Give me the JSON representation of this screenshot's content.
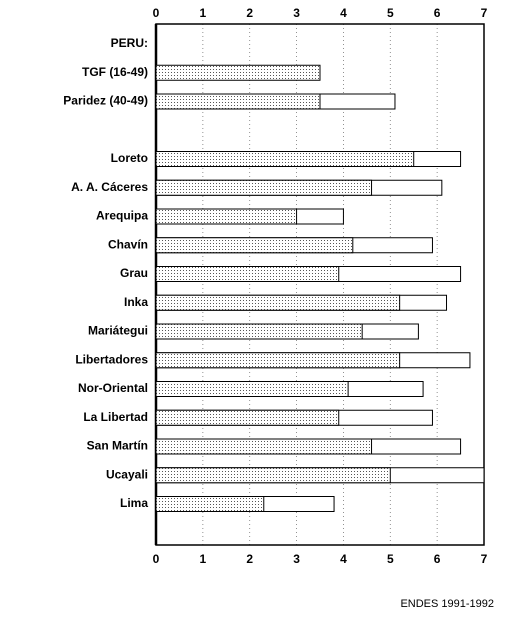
{
  "chart_data": {
    "type": "bar",
    "orientation": "horizontal",
    "categories": [
      "PERU:",
      "TGF (16-49)",
      "Paridez (40-49)",
      null,
      "Loreto",
      "A. A. Cáceres",
      "Arequipa",
      "Chavín",
      "Grau",
      "Inka",
      "Mariátegui",
      "Libertadores",
      "Nor-Oriental",
      "La Libertad",
      "San Martín",
      "Ucayali",
      "Lima"
    ],
    "series": [
      {
        "color": "#c8c8c8",
        "values": [
          null,
          3.5,
          3.5,
          null,
          5.5,
          4.6,
          3.0,
          4.2,
          3.9,
          5.2,
          4.4,
          5.2,
          4.1,
          3.9,
          4.6,
          5.0,
          2.3
        ]
      },
      {
        "color": "#ffffff",
        "values": [
          null,
          null,
          5.1,
          null,
          6.5,
          6.1,
          4.0,
          5.9,
          6.5,
          6.2,
          5.6,
          6.7,
          5.7,
          5.9,
          6.5,
          7.0,
          3.8
        ]
      }
    ],
    "xlim": [
      0,
      7
    ],
    "xticks": [
      0,
      1,
      2,
      3,
      4,
      5,
      6,
      7
    ],
    "grid": true,
    "source": "ENDES 1991-1992"
  }
}
